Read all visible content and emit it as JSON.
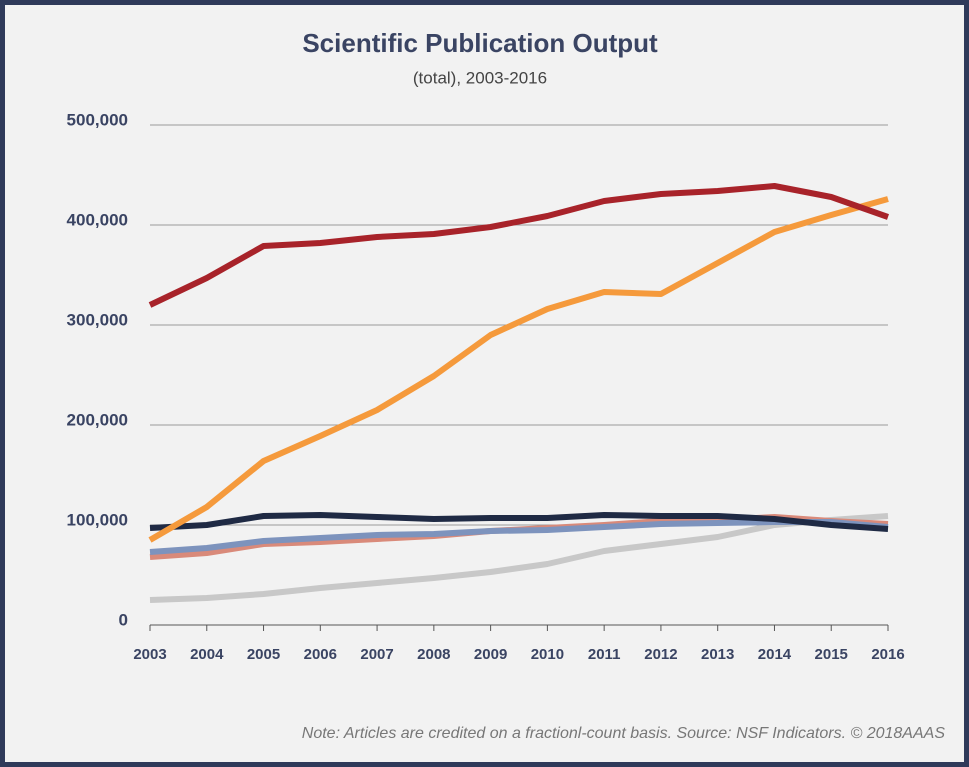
{
  "chart_data": {
    "type": "line",
    "title": "Scientific Publication Output",
    "subtitle": "(total), 2003-2016",
    "note": "Note: Articles are credited on a fractionl-count basis. Source: NSF Indicators. © 2018AAAS",
    "categories": [
      "2003",
      "2004",
      "2005",
      "2006",
      "2007",
      "2008",
      "2009",
      "2010",
      "2011",
      "2012",
      "2013",
      "2014",
      "2015",
      "2016"
    ],
    "ylim": [
      0,
      500000
    ],
    "yticks": [
      0,
      {
        "value": 100000,
        "label": "100,000"
      },
      {
        "value": 200000,
        "label": "200,000"
      },
      {
        "value": 300000,
        "label": "300,000"
      },
      {
        "value": 400000,
        "label": "400,000"
      },
      {
        "value": 500000,
        "label": "500,000"
      }
    ],
    "grid": true,
    "series": [
      {
        "color": "#c8c8c8",
        "values": [
          25000,
          27000,
          31000,
          37000,
          42000,
          47000,
          53000,
          61000,
          74000,
          81000,
          88000,
          100000,
          105000,
          109000
        ]
      },
      {
        "color": "#d98a7a",
        "values": [
          68000,
          72000,
          81000,
          83000,
          86000,
          89000,
          94000,
          97000,
          100000,
          104000,
          105000,
          108000,
          104000,
          101000
        ]
      },
      {
        "color": "#7d93bd",
        "values": [
          73000,
          77000,
          84000,
          87000,
          90000,
          91000,
          94000,
          95000,
          98000,
          101000,
          102000,
          103000,
          103000,
          98000
        ]
      },
      {
        "color": "#1f2a44",
        "values": [
          97000,
          100000,
          109000,
          110000,
          108000,
          106000,
          107000,
          107000,
          110000,
          109000,
          109000,
          106000,
          100000,
          96000
        ]
      },
      {
        "color": "#f59a3c",
        "values": [
          85000,
          118000,
          164000,
          189000,
          215000,
          249000,
          290000,
          316000,
          333000,
          331000,
          362000,
          393000,
          410000,
          426000
        ]
      },
      {
        "color": "#a8232a",
        "values": [
          320000,
          347000,
          379000,
          382000,
          388000,
          391000,
          398000,
          409000,
          424000,
          431000,
          434000,
          439000,
          428000,
          408000
        ]
      }
    ]
  }
}
